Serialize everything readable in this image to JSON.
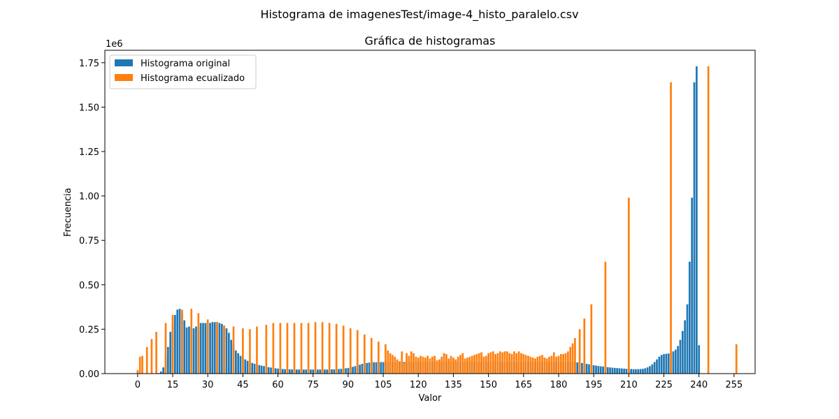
{
  "figure": {
    "suptitle": "Histograma de imagenesTest/image-4_histo_paralelo.csv"
  },
  "chart_data": {
    "type": "bar",
    "title": "Gráfica de histogramas",
    "xlabel": "Valor",
    "ylabel": "Frecuencia",
    "y_offset_label": "1e6",
    "xlim": [
      -14,
      264
    ],
    "ylim": [
      0,
      1820000
    ],
    "xticks": [
      0,
      15,
      30,
      45,
      60,
      75,
      90,
      105,
      120,
      135,
      150,
      165,
      180,
      195,
      210,
      225,
      240,
      255
    ],
    "yticks": [
      0,
      250000,
      500000,
      750000,
      1000000,
      1250000,
      1500000,
      1750000
    ],
    "ytick_labels": [
      "0.00",
      "0.25",
      "0.50",
      "0.75",
      "1.00",
      "1.25",
      "1.50",
      "1.75"
    ],
    "legend_position": "upper-left",
    "grid": false,
    "series": [
      {
        "name": "Histograma original",
        "color": "#1f77b4",
        "values": [
          0,
          0,
          0,
          0,
          0,
          0,
          0,
          0,
          0,
          3000,
          12000,
          35000,
          95000,
          150000,
          235000,
          285000,
          330000,
          360000,
          365000,
          340000,
          300000,
          260000,
          265000,
          255000,
          255000,
          265000,
          260000,
          285000,
          285000,
          285000,
          280000,
          285000,
          290000,
          290000,
          290000,
          285000,
          280000,
          270000,
          255000,
          230000,
          190000,
          165000,
          130000,
          115000,
          100000,
          90000,
          80000,
          72000,
          65000,
          60000,
          55000,
          52000,
          48000,
          45000,
          42000,
          38000,
          36000,
          34000,
          32000,
          30000,
          28000,
          27000,
          26000,
          25000,
          25000,
          24000,
          24000,
          23000,
          23000,
          23000,
          23000,
          23000,
          23000,
          23000,
          23000,
          23000,
          23000,
          23000,
          23000,
          23000,
          23000,
          23000,
          23000,
          24000,
          24000,
          25000,
          26000,
          27000,
          28000,
          30000,
          32000,
          35000,
          38000,
          42000,
          46000,
          50000,
          55000,
          58000,
          60000,
          62000,
          63000,
          64000,
          64000,
          65000,
          65000,
          65000,
          65000,
          65000,
          65000,
          65000,
          65000,
          65000,
          65000,
          65000,
          65000,
          65000,
          65000,
          65000,
          65000,
          65000,
          65000,
          65000,
          65000,
          65000,
          65000,
          65000,
          65000,
          65000,
          65000,
          65000,
          65000,
          65000,
          65000,
          65000,
          65000,
          65000,
          65000,
          65000,
          65000,
          65000,
          65000,
          65000,
          65000,
          65000,
          65000,
          65000,
          65000,
          65000,
          65000,
          65000,
          65000,
          65000,
          65000,
          65000,
          65000,
          65000,
          65000,
          65000,
          65000,
          65000,
          65000,
          65000,
          65000,
          65000,
          65000,
          65000,
          65000,
          65000,
          65000,
          65000,
          65000,
          65000,
          65000,
          65000,
          65000,
          65000,
          65000,
          65000,
          65000,
          65000,
          65000,
          65000,
          65000,
          65000,
          65000,
          65000,
          65000,
          64000,
          63000,
          62000,
          60000,
          58000,
          55000,
          52000,
          50000,
          47000,
          45000,
          43000,
          41000,
          40000,
          38000,
          36000,
          35000,
          33000,
          32000,
          31000,
          30000,
          29000,
          28000,
          27000,
          26000,
          26000,
          25000,
          25000,
          25000,
          26000,
          27000,
          30000,
          35000,
          42000,
          52000,
          65000,
          80000,
          95000,
          105000,
          110000,
          112000,
          113000,
          118000,
          125000,
          135000,
          155000,
          190000,
          240000,
          300000,
          390000,
          630000,
          990000,
          1640000,
          1730000,
          160000,
          0,
          0,
          0,
          0,
          0,
          0
        ]
      },
      {
        "name": "Histograma ecualizado",
        "color": "#ff7f0e",
        "points": [
          [
            0,
            20000
          ],
          [
            1,
            95000
          ],
          [
            2,
            100000
          ],
          [
            4,
            150000
          ],
          [
            6,
            195000
          ],
          [
            8,
            235000
          ],
          [
            12,
            285000
          ],
          [
            15,
            330000
          ],
          [
            19,
            360000
          ],
          [
            23,
            365000
          ],
          [
            26,
            340000
          ],
          [
            30,
            305000
          ],
          [
            34,
            290000
          ],
          [
            37,
            270000
          ],
          [
            41,
            265000
          ],
          [
            45,
            255000
          ],
          [
            48,
            250000
          ],
          [
            51,
            265000
          ],
          [
            55,
            275000
          ],
          [
            58,
            285000
          ],
          [
            61,
            285000
          ],
          [
            64,
            285000
          ],
          [
            67,
            285000
          ],
          [
            70,
            285000
          ],
          [
            73,
            285000
          ],
          [
            76,
            290000
          ],
          [
            79,
            290000
          ],
          [
            82,
            285000
          ],
          [
            85,
            280000
          ],
          [
            88,
            270000
          ],
          [
            91,
            255000
          ],
          [
            94,
            245000
          ],
          [
            97,
            220000
          ],
          [
            100,
            200000
          ],
          [
            103,
            180000
          ],
          [
            106,
            165000
          ],
          [
            107,
            130000
          ],
          [
            108,
            115000
          ],
          [
            109,
            105000
          ],
          [
            110,
            95000
          ],
          [
            111,
            80000
          ],
          [
            112,
            70000
          ],
          [
            113,
            125000
          ],
          [
            114,
            60000
          ],
          [
            115,
            115000
          ],
          [
            116,
            100000
          ],
          [
            117,
            125000
          ],
          [
            118,
            115000
          ],
          [
            119,
            95000
          ],
          [
            120,
            90000
          ],
          [
            121,
            100000
          ],
          [
            122,
            95000
          ],
          [
            123,
            90000
          ],
          [
            124,
            100000
          ],
          [
            125,
            85000
          ],
          [
            126,
            95000
          ],
          [
            127,
            100000
          ],
          [
            128,
            75000
          ],
          [
            129,
            80000
          ],
          [
            130,
            95000
          ],
          [
            131,
            115000
          ],
          [
            132,
            110000
          ],
          [
            133,
            85000
          ],
          [
            134,
            100000
          ],
          [
            135,
            90000
          ],
          [
            136,
            80000
          ],
          [
            137,
            95000
          ],
          [
            138,
            105000
          ],
          [
            139,
            115000
          ],
          [
            140,
            85000
          ],
          [
            141,
            90000
          ],
          [
            142,
            95000
          ],
          [
            143,
            100000
          ],
          [
            144,
            105000
          ],
          [
            145,
            110000
          ],
          [
            146,
            115000
          ],
          [
            147,
            120000
          ],
          [
            148,
            95000
          ],
          [
            149,
            100000
          ],
          [
            150,
            115000
          ],
          [
            151,
            120000
          ],
          [
            152,
            125000
          ],
          [
            153,
            110000
          ],
          [
            154,
            115000
          ],
          [
            155,
            125000
          ],
          [
            156,
            120000
          ],
          [
            157,
            125000
          ],
          [
            158,
            125000
          ],
          [
            159,
            115000
          ],
          [
            160,
            110000
          ],
          [
            161,
            125000
          ],
          [
            162,
            115000
          ],
          [
            163,
            125000
          ],
          [
            164,
            115000
          ],
          [
            165,
            110000
          ],
          [
            166,
            105000
          ],
          [
            167,
            100000
          ],
          [
            168,
            95000
          ],
          [
            169,
            90000
          ],
          [
            170,
            85000
          ],
          [
            171,
            95000
          ],
          [
            172,
            100000
          ],
          [
            173,
            105000
          ],
          [
            174,
            90000
          ],
          [
            175,
            85000
          ],
          [
            176,
            95000
          ],
          [
            177,
            100000
          ],
          [
            178,
            120000
          ],
          [
            179,
            95000
          ],
          [
            180,
            100000
          ],
          [
            181,
            110000
          ],
          [
            182,
            110000
          ],
          [
            183,
            115000
          ],
          [
            184,
            125000
          ],
          [
            185,
            150000
          ],
          [
            186,
            170000
          ],
          [
            187,
            200000
          ],
          [
            189,
            250000
          ],
          [
            191,
            310000
          ],
          [
            194,
            390000
          ],
          [
            200,
            630000
          ],
          [
            210,
            990000
          ],
          [
            228,
            1640000
          ],
          [
            244,
            1730000
          ],
          [
            256,
            165000
          ]
        ]
      }
    ]
  }
}
